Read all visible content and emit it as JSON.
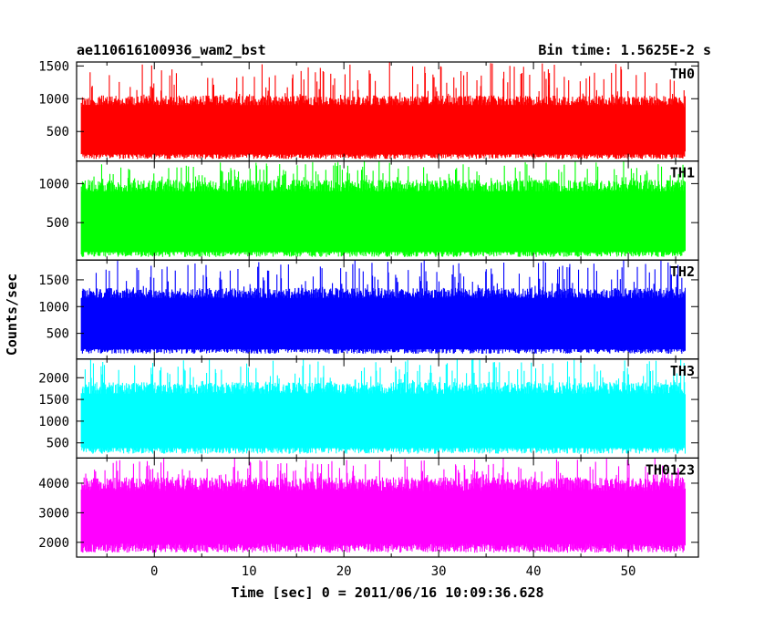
{
  "header": {
    "title": "ae110616100936_wam2_bst",
    "bin_time": "Bin time: 1.5625E-2 s"
  },
  "axes": {
    "ylabel": "Counts/sec",
    "xlabel": "Time [sec] 0 = 2011/06/16 10:09:36.628"
  },
  "chart_data": {
    "type": "line",
    "x_range": [
      -8.2,
      57.4
    ],
    "x_ticks": [
      0,
      10,
      20,
      30,
      40,
      50
    ],
    "x_data_range": [
      -7.7,
      56.0
    ],
    "panels": [
      {
        "label": "TH0",
        "color": "#ff0000",
        "ylim": [
          50,
          1560
        ],
        "yticks": [
          500,
          1000,
          1500
        ],
        "band": [
          80,
          1050
        ],
        "peak": 1560
      },
      {
        "label": "TH1",
        "color": "#00ff00",
        "ylim": [
          20,
          1290
        ],
        "yticks": [
          500,
          1000
        ],
        "band": [
          60,
          1050
        ],
        "peak": 1290
      },
      {
        "label": "TH2",
        "color": "#0000ff",
        "ylim": [
          20,
          1870
        ],
        "yticks": [
          500,
          1000,
          1500
        ],
        "band": [
          120,
          1350
        ],
        "peak": 1870
      },
      {
        "label": "TH3",
        "color": "#00ffff",
        "ylim": [
          150,
          2430
        ],
        "yticks": [
          500,
          1000,
          1500,
          2000
        ],
        "band": [
          250,
          1900
        ],
        "peak": 2430
      },
      {
        "label": "TH0123",
        "color": "#ff00ff",
        "ylim": [
          1500,
          4850
        ],
        "yticks": [
          2000,
          3000,
          4000
        ],
        "band": [
          1650,
          4200
        ],
        "peak": 4850
      }
    ]
  }
}
